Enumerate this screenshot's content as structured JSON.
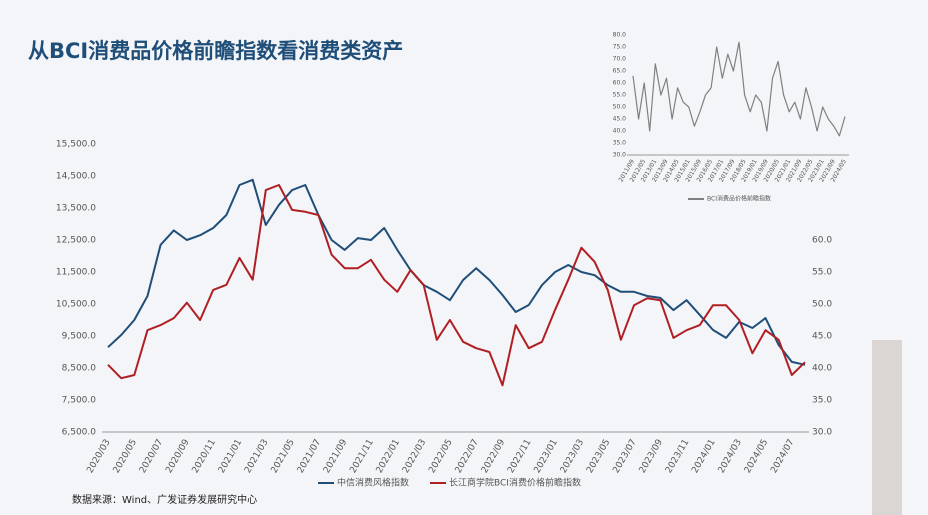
{
  "chart_data": [
    {
      "type": "line",
      "title": "从BCI消费品价格前瞻指数看消费类资产",
      "source": "数据来源：Wind、广发证券发展研究中心",
      "categories": [
        "2020/03",
        null,
        "2020/05",
        null,
        "2020/07",
        null,
        "2020/09",
        null,
        "2020/11",
        null,
        "2021/01",
        null,
        "2021/03",
        null,
        "2021/05",
        null,
        "2021/07",
        null,
        "2021/09",
        null,
        "2021/11",
        null,
        "2022/01",
        null,
        "2022/03",
        null,
        "2022/05",
        null,
        "2022/07",
        null,
        "2022/09",
        null,
        "2022/11",
        null,
        "2023/01",
        null,
        "2023/03",
        null,
        "2023/05",
        null,
        "2023/07",
        null,
        "2023/09",
        null,
        "2023/11",
        null,
        "2024/01",
        null,
        "2024/03",
        null,
        "2024/05",
        null,
        "2024/07",
        null
      ],
      "series": [
        {
          "name": "中信消费风格指数",
          "color": "#1f4e79",
          "axis": "y",
          "values": [
            9150,
            9530,
            10000,
            10750,
            12350,
            12800,
            12500,
            12650,
            12875,
            13280,
            14220,
            14380,
            12970,
            13600,
            14060,
            14220,
            13280,
            12500,
            12190,
            12560,
            12500,
            12875,
            12190,
            11560,
            11090,
            10880,
            10620,
            11250,
            11620,
            11250,
            10780,
            10250,
            10470,
            11090,
            11500,
            11720,
            11500,
            11400,
            11090,
            10880,
            10880,
            10750,
            10690,
            10310,
            10620,
            10160,
            9690,
            9440,
            9940,
            9750,
            10060,
            9220,
            8690,
            8600
          ]
        },
        {
          "name": "长江商学院BCI消费价格前瞻指数",
          "color": "#b01f24",
          "axis": "y2",
          "values": [
            40.5,
            38.4,
            38.9,
            45.9,
            46.7,
            47.8,
            50.2,
            47.5,
            52.2,
            53.0,
            57.2,
            53.8,
            67.8,
            68.6,
            64.7,
            64.4,
            63.9,
            57.7,
            55.6,
            55.6,
            56.9,
            53.8,
            51.9,
            55.3,
            53.0,
            44.4,
            47.5,
            44.1,
            43.1,
            42.5,
            37.3,
            46.7,
            43.1,
            44.1,
            49.1,
            53.8,
            58.8,
            56.6,
            52.2,
            44.4,
            49.8,
            50.9,
            50.6,
            44.7,
            45.9,
            46.7,
            49.8,
            49.8,
            47.5,
            42.3,
            45.9,
            44.4,
            38.9,
            40.9
          ]
        }
      ],
      "ylim": [
        6500,
        15500
      ],
      "yticks": [
        {
          "value": 6500,
          "label": "6,500.0"
        },
        {
          "value": 7500,
          "label": "7,500.0"
        },
        {
          "value": 8500,
          "label": "8,500.0"
        },
        {
          "value": 9500,
          "label": "9,500.0"
        },
        {
          "value": 10500,
          "label": "10,500.0"
        },
        {
          "value": 11500,
          "label": "11,500.0"
        },
        {
          "value": 12500,
          "label": "12,500.0"
        },
        {
          "value": 13500,
          "label": "13,500.0"
        },
        {
          "value": 14500,
          "label": "14,500.0"
        },
        {
          "value": 15500,
          "label": "15,500.0"
        }
      ],
      "y2lim": [
        30,
        75
      ],
      "y2ticks": [
        {
          "value": 30,
          "label": "30.0"
        },
        {
          "value": 35,
          "label": "35.0"
        },
        {
          "value": 40,
          "label": "40.0"
        },
        {
          "value": 45,
          "label": "45.0"
        },
        {
          "value": 50,
          "label": "50.0"
        },
        {
          "value": 55,
          "label": "55.0"
        },
        {
          "value": 60,
          "label": "60.0"
        }
      ]
    },
    {
      "type": "line",
      "categories": [
        "2011/09",
        null,
        "2012/05",
        null,
        "2013/01",
        null,
        "2013/09",
        null,
        "2014/05",
        null,
        "2015/01",
        null,
        "2015/09",
        null,
        "2016/05",
        null,
        "2017/01",
        null,
        "2017/09",
        null,
        "2018/05",
        null,
        "2019/01",
        null,
        "2019/09",
        null,
        "2020/05",
        null,
        "2021/01",
        null,
        "2021/09",
        null,
        "2022/05",
        null,
        "2023/01",
        null,
        "2023/09",
        null,
        "2024/05"
      ],
      "series": [
        {
          "name": "BCI消费品价格前瞻指数",
          "color": "#808080",
          "axis": "y",
          "values": [
            63,
            45,
            60,
            40,
            68,
            55,
            62,
            45,
            58,
            52,
            50,
            42,
            48,
            55,
            58,
            75,
            62,
            72,
            65,
            77,
            55,
            48,
            55,
            52,
            40,
            62,
            69,
            55,
            48,
            52,
            45,
            58,
            50,
            40,
            50,
            45,
            42,
            38,
            46
          ]
        }
      ],
      "ylim": [
        30,
        80
      ],
      "yticks": [
        {
          "value": 30,
          "label": "30.0"
        },
        {
          "value": 35,
          "label": "35.0"
        },
        {
          "value": 40,
          "label": "40.0"
        },
        {
          "value": 45,
          "label": "45.0"
        },
        {
          "value": 50,
          "label": "50.0"
        },
        {
          "value": 55,
          "label": "55.0"
        },
        {
          "value": 60,
          "label": "60.0"
        },
        {
          "value": 65,
          "label": "65.0"
        },
        {
          "value": 70,
          "label": "70.0"
        },
        {
          "value": 75,
          "label": "75.0"
        },
        {
          "value": 80,
          "label": "80.0"
        }
      ]
    }
  ]
}
